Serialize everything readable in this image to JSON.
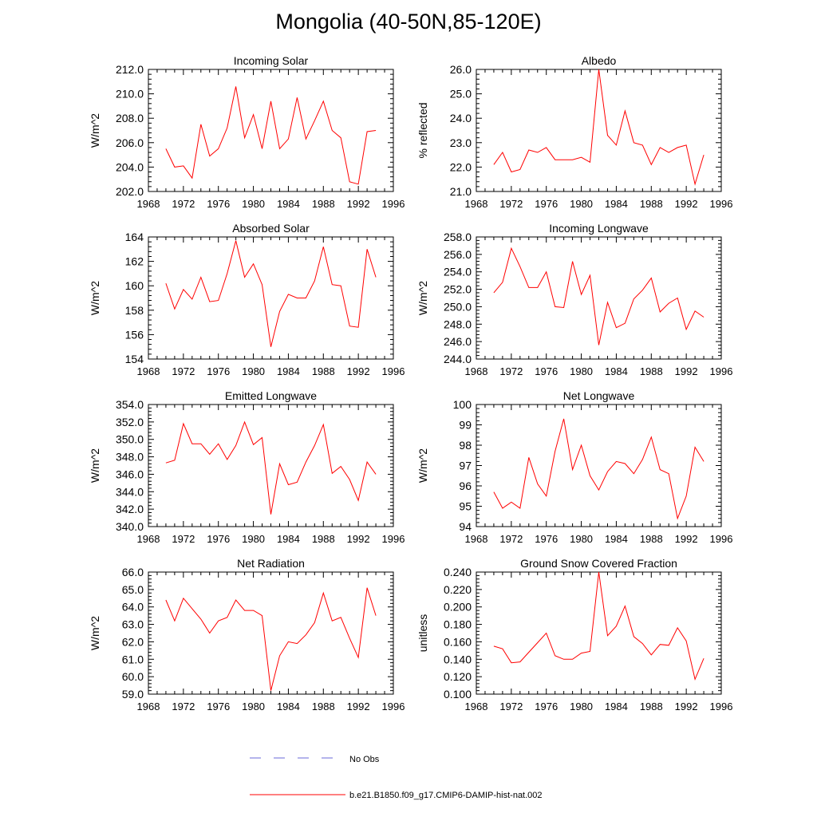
{
  "title": "Mongolia (40-50N,85-120E)",
  "colors": {
    "model_line": "#ff0000",
    "obs_line": "#6a6ad8",
    "axis": "#000000"
  },
  "legend": {
    "obs_label": "No Obs",
    "model_label": "b.e21.B1850.f09_g17.CMIP6-DAMIP-hist-nat.002"
  },
  "chart_data": [
    {
      "type": "line",
      "title": "Incoming Solar",
      "ylabel": "W/m^2",
      "xlim": [
        1968,
        1996
      ],
      "ylim": [
        202.0,
        212.0
      ],
      "xticks": [
        "1968",
        "1972",
        "1976",
        "1980",
        "1984",
        "1988",
        "1992",
        "1996"
      ],
      "yticks": [
        "202.0",
        "204.0",
        "206.0",
        "208.0",
        "210.0",
        "212.0"
      ],
      "x": [
        1970,
        1971,
        1972,
        1973,
        1974,
        1975,
        1976,
        1977,
        1978,
        1979,
        1980,
        1981,
        1982,
        1983,
        1984,
        1985,
        1986,
        1987,
        1988,
        1989,
        1990,
        1991,
        1992,
        1993,
        1994
      ],
      "series": [
        {
          "name": "b.e21.B1850.f09_g17.CMIP6-DAMIP-hist-nat.002",
          "values": [
            205.5,
            204.0,
            204.1,
            203.1,
            207.5,
            204.9,
            205.5,
            207.2,
            210.6,
            206.4,
            208.3,
            205.5,
            209.4,
            205.5,
            206.3,
            209.7,
            206.3,
            207.8,
            209.4,
            207.0,
            206.4,
            202.8,
            202.6,
            206.9,
            207.0
          ]
        }
      ]
    },
    {
      "type": "line",
      "title": "Albedo",
      "ylabel": "% reflected",
      "xlim": [
        1968,
        1996
      ],
      "ylim": [
        21.0,
        26.0
      ],
      "xticks": [
        "1968",
        "1972",
        "1976",
        "1980",
        "1984",
        "1988",
        "1992",
        "1996"
      ],
      "yticks": [
        "21.0",
        "22.0",
        "23.0",
        "24.0",
        "25.0",
        "26.0"
      ],
      "x": [
        1970,
        1971,
        1972,
        1973,
        1974,
        1975,
        1976,
        1977,
        1978,
        1979,
        1980,
        1981,
        1982,
        1983,
        1984,
        1985,
        1986,
        1987,
        1988,
        1989,
        1990,
        1991,
        1992,
        1993,
        1994
      ],
      "series": [
        {
          "name": "b.e21.B1850.f09_g17.CMIP6-DAMIP-hist-nat.002",
          "values": [
            22.1,
            22.6,
            21.8,
            21.9,
            22.7,
            22.6,
            22.8,
            22.3,
            22.3,
            22.3,
            22.4,
            22.2,
            26.0,
            23.3,
            22.9,
            24.3,
            23.0,
            22.9,
            22.1,
            22.8,
            22.6,
            22.8,
            22.9,
            21.3,
            22.5
          ]
        }
      ]
    },
    {
      "type": "line",
      "title": "Absorbed Solar",
      "ylabel": "W/m^2",
      "xlim": [
        1968,
        1996
      ],
      "ylim": [
        154,
        164
      ],
      "xticks": [
        "1968",
        "1972",
        "1976",
        "1980",
        "1984",
        "1988",
        "1992",
        "1996"
      ],
      "yticks": [
        "154",
        "156",
        "158",
        "160",
        "162",
        "164"
      ],
      "x": [
        1970,
        1971,
        1972,
        1973,
        1974,
        1975,
        1976,
        1977,
        1978,
        1979,
        1980,
        1981,
        1982,
        1983,
        1984,
        1985,
        1986,
        1987,
        1988,
        1989,
        1990,
        1991,
        1992,
        1993,
        1994
      ],
      "series": [
        {
          "name": "b.e21.B1850.f09_g17.CMIP6-DAMIP-hist-nat.002",
          "values": [
            160.2,
            158.1,
            159.7,
            158.9,
            160.7,
            158.7,
            158.8,
            161.0,
            163.7,
            160.7,
            161.8,
            160.1,
            155.0,
            157.9,
            159.3,
            159.0,
            159.0,
            160.4,
            163.2,
            160.1,
            160.0,
            156.7,
            156.6,
            163.0,
            160.7
          ]
        }
      ]
    },
    {
      "type": "line",
      "title": "Incoming Longwave",
      "ylabel": "W/m^2",
      "xlim": [
        1968,
        1996
      ],
      "ylim": [
        244.0,
        258.0
      ],
      "xticks": [
        "1968",
        "1972",
        "1976",
        "1980",
        "1984",
        "1988",
        "1992",
        "1996"
      ],
      "yticks": [
        "244.0",
        "246.0",
        "248.0",
        "250.0",
        "252.0",
        "254.0",
        "256.0",
        "258.0"
      ],
      "x": [
        1970,
        1971,
        1972,
        1973,
        1974,
        1975,
        1976,
        1977,
        1978,
        1979,
        1980,
        1981,
        1982,
        1983,
        1984,
        1985,
        1986,
        1987,
        1988,
        1989,
        1990,
        1991,
        1992,
        1993,
        1994
      ],
      "series": [
        {
          "name": "b.e21.B1850.f09_g17.CMIP6-DAMIP-hist-nat.002",
          "values": [
            251.6,
            252.8,
            256.7,
            254.6,
            252.2,
            252.2,
            254.0,
            250.0,
            249.9,
            255.2,
            251.4,
            253.6,
            245.6,
            250.5,
            247.6,
            248.1,
            250.9,
            251.9,
            253.3,
            249.4,
            250.4,
            251.0,
            247.4,
            249.5,
            248.8
          ]
        }
      ]
    },
    {
      "type": "line",
      "title": "Emitted Longwave",
      "ylabel": "W/m^2",
      "xlim": [
        1968,
        1996
      ],
      "ylim": [
        340.0,
        354.0
      ],
      "xticks": [
        "1968",
        "1972",
        "1976",
        "1980",
        "1984",
        "1988",
        "1992",
        "1996"
      ],
      "yticks": [
        "340.0",
        "342.0",
        "344.0",
        "346.0",
        "348.0",
        "350.0",
        "352.0",
        "354.0"
      ],
      "x": [
        1970,
        1971,
        1972,
        1973,
        1974,
        1975,
        1976,
        1977,
        1978,
        1979,
        1980,
        1981,
        1982,
        1983,
        1984,
        1985,
        1986,
        1987,
        1988,
        1989,
        1990,
        1991,
        1992,
        1993,
        1994
      ],
      "series": [
        {
          "name": "b.e21.B1850.f09_g17.CMIP6-DAMIP-hist-nat.002",
          "values": [
            347.3,
            347.6,
            351.8,
            349.5,
            349.5,
            348.3,
            349.5,
            347.7,
            349.3,
            352.0,
            349.4,
            350.2,
            341.4,
            347.2,
            344.8,
            345.1,
            347.4,
            349.3,
            351.7,
            346.1,
            346.9,
            345.4,
            343.0,
            347.4,
            346.0
          ]
        }
      ]
    },
    {
      "type": "line",
      "title": "Net Longwave",
      "ylabel": "W/m^2",
      "xlim": [
        1968,
        1996
      ],
      "ylim": [
        94,
        100
      ],
      "xticks": [
        "1968",
        "1972",
        "1976",
        "1980",
        "1984",
        "1988",
        "1992",
        "1996"
      ],
      "yticks": [
        "94",
        "95",
        "96",
        "97",
        "98",
        "99",
        "100"
      ],
      "x": [
        1970,
        1971,
        1972,
        1973,
        1974,
        1975,
        1976,
        1977,
        1978,
        1979,
        1980,
        1981,
        1982,
        1983,
        1984,
        1985,
        1986,
        1987,
        1988,
        1989,
        1990,
        1991,
        1992,
        1993,
        1994
      ],
      "series": [
        {
          "name": "b.e21.B1850.f09_g17.CMIP6-DAMIP-hist-nat.002",
          "values": [
            95.7,
            94.9,
            95.2,
            94.9,
            97.4,
            96.1,
            95.5,
            97.7,
            99.3,
            96.8,
            98.0,
            96.5,
            95.8,
            96.7,
            97.2,
            97.1,
            96.6,
            97.3,
            98.4,
            96.8,
            96.6,
            94.4,
            95.5,
            97.9,
            97.2
          ]
        }
      ]
    },
    {
      "type": "line",
      "title": "Net Radiation",
      "ylabel": "W/m^2",
      "xlim": [
        1968,
        1996
      ],
      "ylim": [
        59.0,
        66.0
      ],
      "xticks": [
        "1968",
        "1972",
        "1976",
        "1980",
        "1984",
        "1988",
        "1992",
        "1996"
      ],
      "yticks": [
        "59.0",
        "60.0",
        "61.0",
        "62.0",
        "63.0",
        "64.0",
        "65.0",
        "66.0"
      ],
      "x": [
        1970,
        1971,
        1972,
        1973,
        1974,
        1975,
        1976,
        1977,
        1978,
        1979,
        1980,
        1981,
        1982,
        1983,
        1984,
        1985,
        1986,
        1987,
        1988,
        1989,
        1990,
        1991,
        1992,
        1993,
        1994
      ],
      "series": [
        {
          "name": "b.e21.B1850.f09_g17.CMIP6-DAMIP-hist-nat.002",
          "values": [
            64.4,
            63.2,
            64.5,
            63.9,
            63.3,
            62.5,
            63.2,
            63.4,
            64.4,
            63.8,
            63.8,
            63.5,
            59.2,
            61.2,
            62.0,
            61.9,
            62.4,
            63.1,
            64.8,
            63.2,
            63.4,
            62.2,
            61.1,
            65.1,
            63.5
          ]
        }
      ]
    },
    {
      "type": "line",
      "title": "Ground Snow Covered Fraction",
      "ylabel": "unitless",
      "xlim": [
        1968,
        1996
      ],
      "ylim": [
        0.1,
        0.24
      ],
      "xticks": [
        "1968",
        "1972",
        "1976",
        "1980",
        "1984",
        "1988",
        "1992",
        "1996"
      ],
      "yticks": [
        "0.100",
        "0.120",
        "0.140",
        "0.160",
        "0.180",
        "0.200",
        "0.220",
        "0.240"
      ],
      "x": [
        1970,
        1971,
        1972,
        1973,
        1974,
        1975,
        1976,
        1977,
        1978,
        1979,
        1980,
        1981,
        1982,
        1983,
        1984,
        1985,
        1986,
        1987,
        1988,
        1989,
        1990,
        1991,
        1992,
        1993,
        1994
      ],
      "series": [
        {
          "name": "b.e21.B1850.f09_g17.CMIP6-DAMIP-hist-nat.002",
          "values": [
            0.155,
            0.152,
            0.136,
            0.137,
            0.148,
            0.159,
            0.17,
            0.144,
            0.14,
            0.14,
            0.147,
            0.149,
            0.24,
            0.167,
            0.178,
            0.201,
            0.166,
            0.158,
            0.145,
            0.157,
            0.156,
            0.176,
            0.161,
            0.117,
            0.141
          ]
        }
      ]
    }
  ]
}
